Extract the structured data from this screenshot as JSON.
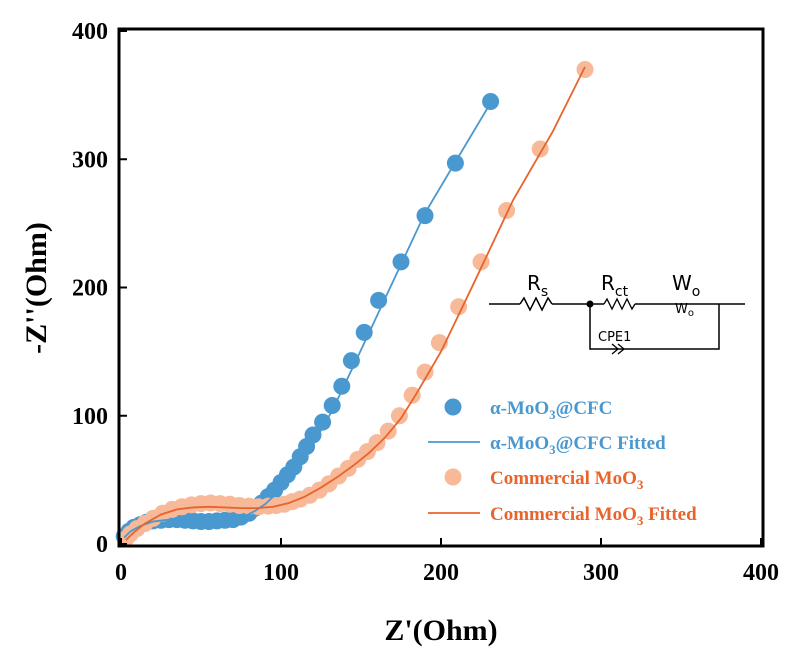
{
  "chart_data": {
    "type": "scatter",
    "xlabel": "Z'(Ohm)",
    "ylabel": "-Z''(Ohm)",
    "xlim": [
      0,
      400
    ],
    "ylim": [
      0,
      400
    ],
    "xticks": [
      0,
      100,
      200,
      300,
      400
    ],
    "yticks": [
      0,
      100,
      200,
      300,
      400
    ],
    "grid": false,
    "legend_position": "center-right",
    "series": [
      {
        "name": "α-MoO₃@CFC",
        "legend_main": "α-MoO",
        "legend_sub": "3",
        "legend_suffix": "@CFC",
        "kind": "markers",
        "color": "#4a98d0",
        "x": [
          2,
          5,
          8,
          12,
          16,
          20,
          25,
          30,
          35,
          40,
          45,
          50,
          55,
          60,
          65,
          70,
          75,
          80,
          84,
          88,
          92,
          96,
          100,
          104,
          108,
          112,
          116,
          120,
          126,
          132,
          138,
          144,
          152,
          161,
          175,
          190,
          209,
          231
        ],
        "y": [
          6,
          10,
          13,
          15,
          17,
          18,
          18.5,
          19,
          19,
          18.5,
          18,
          17.5,
          17.5,
          18,
          18.5,
          19,
          21,
          24,
          28,
          32,
          37,
          42,
          48,
          54,
          60,
          68,
          76,
          85,
          95,
          108,
          123,
          143,
          165,
          190,
          220,
          256,
          297,
          345
        ]
      },
      {
        "name": "α-MoO₃@CFC Fitted",
        "legend_main": "α-MoO",
        "legend_sub": "3",
        "legend_suffix": "@CFC Fitted",
        "kind": "line",
        "color": "#4a98d0",
        "x": [
          2,
          6,
          12,
          20,
          30,
          40,
          50,
          60,
          70,
          78,
          84,
          90,
          96,
          102,
          110,
          120,
          132,
          145,
          160,
          175,
          190,
          210,
          232
        ],
        "y": [
          5,
          10,
          14,
          17.5,
          19,
          18.5,
          17.5,
          17.5,
          19,
          22,
          26,
          31,
          38,
          47,
          60,
          78,
          104,
          138,
          178,
          218,
          258,
          300,
          346
        ]
      },
      {
        "name": "Commercial MoO₃",
        "legend_main": "Commercial MoO",
        "legend_sub": "3",
        "legend_suffix": "",
        "kind": "markers",
        "color": "#f8b998",
        "x": [
          3,
          6,
          10,
          15,
          20,
          26,
          32,
          38,
          44,
          50,
          56,
          62,
          68,
          74,
          80,
          86,
          92,
          97,
          102,
          107,
          112,
          118,
          124,
          130,
          136,
          142,
          148,
          154,
          160,
          167,
          174,
          182,
          190,
          199,
          211,
          225,
          241,
          262,
          290
        ],
        "y": [
          4,
          8,
          12,
          16,
          20,
          24,
          27,
          29,
          30.5,
          31.5,
          32,
          31.5,
          31,
          30,
          29.5,
          29,
          29.5,
          30,
          31,
          33,
          35,
          38,
          42,
          47,
          53,
          59,
          66,
          72,
          79,
          88,
          100,
          116,
          134,
          157,
          185,
          220,
          260,
          308,
          370
        ]
      },
      {
        "name": "Commercial MoO₃ Fitted",
        "legend_main": "Commercial MoO",
        "legend_sub": "3",
        "legend_suffix": " Fitted",
        "kind": "line",
        "color": "#e8642c",
        "x": [
          3,
          8,
          15,
          25,
          35,
          45,
          55,
          65,
          75,
          85,
          95,
          105,
          115,
          125,
          135,
          145,
          155,
          165,
          175,
          185,
          200,
          220,
          245,
          270,
          290
        ],
        "y": [
          3,
          9,
          16,
          23,
          27,
          28.5,
          29,
          28.5,
          28,
          28,
          29,
          32,
          37,
          44,
          52,
          61,
          71,
          83,
          98,
          118,
          150,
          202,
          268,
          322,
          372
        ]
      }
    ],
    "inset_circuit": {
      "labels": [
        "R",
        "R",
        "W",
        "W",
        "CPE1"
      ],
      "subs": [
        "s",
        "ct",
        "o",
        "o"
      ]
    }
  }
}
